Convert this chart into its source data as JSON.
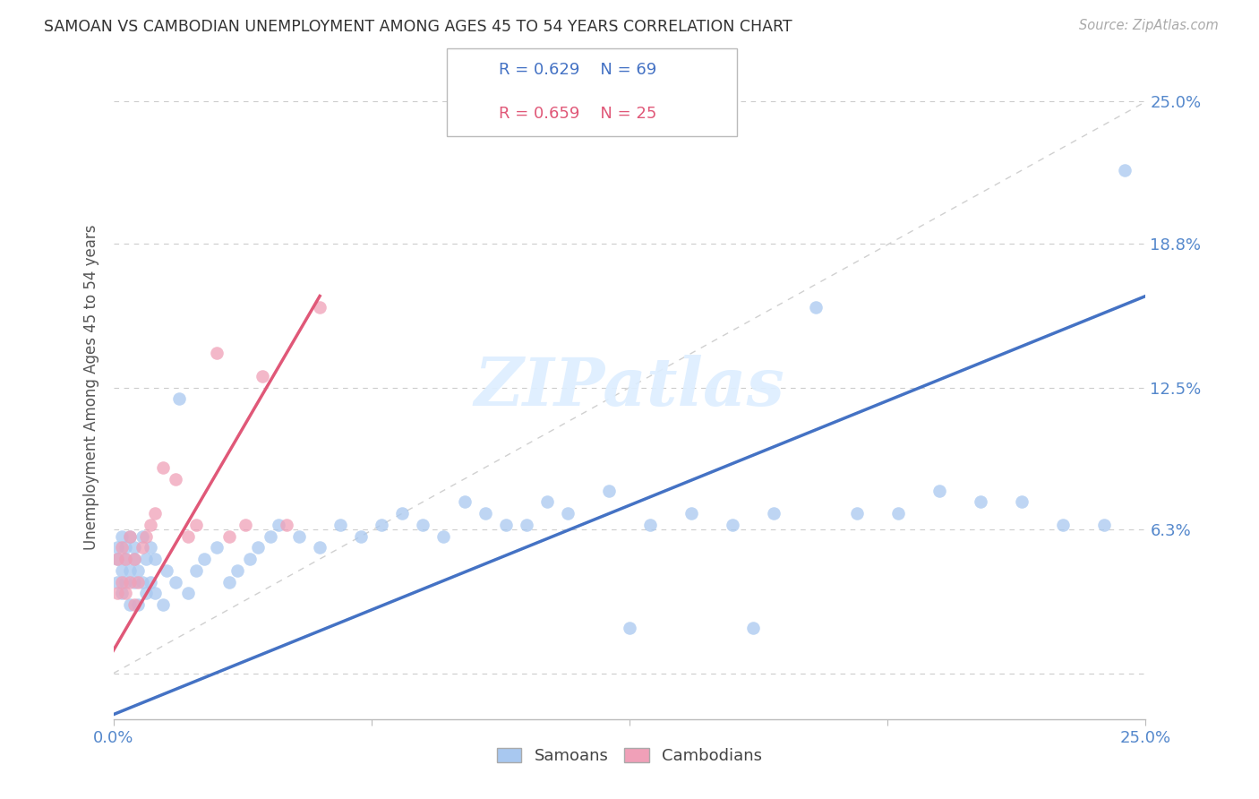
{
  "title": "SAMOAN VS CAMBODIAN UNEMPLOYMENT AMONG AGES 45 TO 54 YEARS CORRELATION CHART",
  "source": "Source: ZipAtlas.com",
  "ylabel": "Unemployment Among Ages 45 to 54 years",
  "xlim": [
    0.0,
    0.25
  ],
  "ylim": [
    -0.02,
    0.27
  ],
  "samoans_R": 0.629,
  "samoans_N": 69,
  "cambodians_R": 0.659,
  "cambodians_N": 25,
  "samoan_color": "#a8c8f0",
  "cambodian_color": "#f0a0b8",
  "samoan_line_color": "#4472c4",
  "cambodian_line_color": "#e05878",
  "diagonal_color": "#d0d0d0",
  "background_color": "#ffffff",
  "grid_color": "#cccccc",
  "tick_color": "#5588cc",
  "ytick_vals": [
    0.0,
    0.063,
    0.125,
    0.188,
    0.25
  ],
  "ytick_labels": [
    "",
    "6.3%",
    "12.5%",
    "18.8%",
    "25.0%"
  ],
  "sam_line_x": [
    0.0,
    0.25
  ],
  "sam_line_y": [
    -0.018,
    0.165
  ],
  "cam_line_x": [
    0.0,
    0.05
  ],
  "cam_line_y": [
    0.01,
    0.165
  ],
  "samoans_x": [
    0.001,
    0.001,
    0.001,
    0.002,
    0.002,
    0.002,
    0.003,
    0.003,
    0.003,
    0.004,
    0.004,
    0.004,
    0.005,
    0.005,
    0.005,
    0.006,
    0.006,
    0.007,
    0.007,
    0.008,
    0.008,
    0.009,
    0.009,
    0.01,
    0.01,
    0.012,
    0.013,
    0.015,
    0.016,
    0.018,
    0.02,
    0.022,
    0.025,
    0.028,
    0.03,
    0.033,
    0.035,
    0.038,
    0.04,
    0.045,
    0.05,
    0.055,
    0.06,
    0.065,
    0.07,
    0.075,
    0.08,
    0.085,
    0.09,
    0.095,
    0.1,
    0.105,
    0.11,
    0.12,
    0.13,
    0.14,
    0.15,
    0.16,
    0.17,
    0.18,
    0.19,
    0.2,
    0.21,
    0.22,
    0.23,
    0.24,
    0.245,
    0.125,
    0.155
  ],
  "samoans_y": [
    0.04,
    0.05,
    0.055,
    0.035,
    0.045,
    0.06,
    0.04,
    0.05,
    0.055,
    0.03,
    0.045,
    0.06,
    0.04,
    0.05,
    0.055,
    0.03,
    0.045,
    0.04,
    0.06,
    0.035,
    0.05,
    0.04,
    0.055,
    0.035,
    0.05,
    0.03,
    0.045,
    0.04,
    0.12,
    0.035,
    0.045,
    0.05,
    0.055,
    0.04,
    0.045,
    0.05,
    0.055,
    0.06,
    0.065,
    0.06,
    0.055,
    0.065,
    0.06,
    0.065,
    0.07,
    0.065,
    0.06,
    0.075,
    0.07,
    0.065,
    0.065,
    0.075,
    0.07,
    0.08,
    0.065,
    0.07,
    0.065,
    0.07,
    0.16,
    0.07,
    0.07,
    0.08,
    0.075,
    0.075,
    0.065,
    0.065,
    0.22,
    0.02,
    0.02
  ],
  "cambodians_x": [
    0.001,
    0.001,
    0.002,
    0.002,
    0.003,
    0.003,
    0.004,
    0.004,
    0.005,
    0.005,
    0.006,
    0.007,
    0.008,
    0.009,
    0.01,
    0.012,
    0.015,
    0.018,
    0.02,
    0.025,
    0.028,
    0.032,
    0.036,
    0.042,
    0.05
  ],
  "cambodians_y": [
    0.035,
    0.05,
    0.04,
    0.055,
    0.035,
    0.05,
    0.04,
    0.06,
    0.03,
    0.05,
    0.04,
    0.055,
    0.06,
    0.065,
    0.07,
    0.09,
    0.085,
    0.06,
    0.065,
    0.14,
    0.06,
    0.065,
    0.13,
    0.065,
    0.16
  ]
}
